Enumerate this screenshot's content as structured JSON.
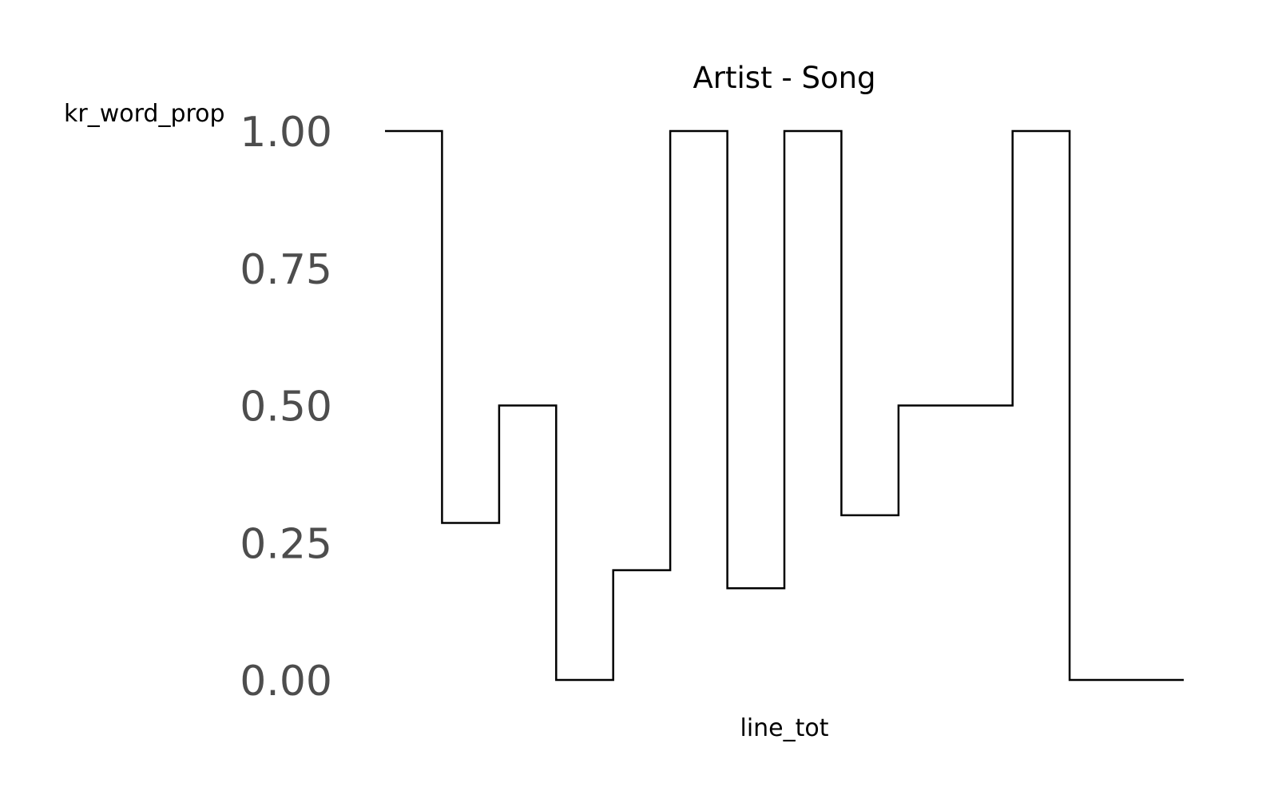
{
  "chart_data": {
    "type": "line",
    "step": true,
    "title": "Artist - Song",
    "xlabel": "line_tot",
    "ylabel": "kr_word_prop",
    "ylim": [
      0,
      1
    ],
    "y_ticks": [
      {
        "value": 0,
        "label": "0.00"
      },
      {
        "value": 0.25,
        "label": "0.25"
      },
      {
        "value": 0.5,
        "label": "0.50"
      },
      {
        "value": 0.75,
        "label": "0.75"
      },
      {
        "value": 1,
        "label": "1.00"
      }
    ],
    "x_ticks_shown": false,
    "grid": false,
    "series": [
      {
        "x": [
          1,
          2,
          3,
          4,
          5,
          6,
          7,
          8,
          9,
          10,
          11,
          12,
          13,
          14
        ],
        "values": [
          1.0,
          0.286,
          0.5,
          0.0,
          0.2,
          1.0,
          0.167,
          1.0,
          0.3,
          0.5,
          0.5,
          1.0,
          0.0,
          0.0
        ]
      }
    ]
  }
}
